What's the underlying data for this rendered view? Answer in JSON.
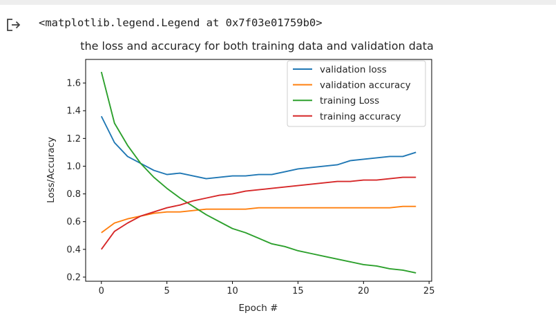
{
  "output": {
    "icon": "output-arrow-icon",
    "repr_text": "<matplotlib.legend.Legend at 0x7f03e01759b0>"
  },
  "chart_data": {
    "type": "line",
    "title": "the loss and accuracy for both training data and validation data",
    "xlabel": "Epoch #",
    "ylabel": "Loss/Accuracy",
    "xlim": [
      -1.2,
      25.2
    ],
    "ylim": [
      0.17,
      1.77
    ],
    "xticks": [
      0,
      5,
      10,
      15,
      20,
      25
    ],
    "yticks": [
      0.2,
      0.4,
      0.6,
      0.8,
      1.0,
      1.2,
      1.4,
      1.6
    ],
    "ytick_labels": [
      "0.2",
      "0.4",
      "0.6",
      "0.8",
      "1.0",
      "1.2",
      "1.4",
      "1.6"
    ],
    "grid": false,
    "legend_position": "upper right",
    "x": [
      0,
      1,
      2,
      3,
      4,
      5,
      6,
      7,
      8,
      9,
      10,
      11,
      12,
      13,
      14,
      15,
      16,
      17,
      18,
      19,
      20,
      21,
      22,
      23,
      24
    ],
    "series": [
      {
        "name": "validation loss",
        "color": "#1f77b4",
        "values": [
          1.36,
          1.17,
          1.07,
          1.02,
          0.97,
          0.94,
          0.95,
          0.93,
          0.91,
          0.92,
          0.93,
          0.93,
          0.94,
          0.94,
          0.96,
          0.98,
          0.99,
          1.0,
          1.01,
          1.04,
          1.05,
          1.06,
          1.07,
          1.07,
          1.1
        ]
      },
      {
        "name": "validation accuracy",
        "color": "#ff7f0e",
        "values": [
          0.52,
          0.59,
          0.62,
          0.64,
          0.66,
          0.67,
          0.67,
          0.68,
          0.69,
          0.69,
          0.69,
          0.69,
          0.7,
          0.7,
          0.7,
          0.7,
          0.7,
          0.7,
          0.7,
          0.7,
          0.7,
          0.7,
          0.7,
          0.71,
          0.71
        ]
      },
      {
        "name": "training Loss",
        "color": "#2ca02c",
        "values": [
          1.68,
          1.31,
          1.15,
          1.02,
          0.92,
          0.84,
          0.77,
          0.71,
          0.65,
          0.6,
          0.55,
          0.52,
          0.48,
          0.44,
          0.42,
          0.39,
          0.37,
          0.35,
          0.33,
          0.31,
          0.29,
          0.28,
          0.26,
          0.25,
          0.23
        ]
      },
      {
        "name": "training accuracy",
        "color": "#d62728",
        "values": [
          0.4,
          0.53,
          0.59,
          0.64,
          0.67,
          0.7,
          0.72,
          0.75,
          0.77,
          0.79,
          0.8,
          0.82,
          0.83,
          0.84,
          0.85,
          0.86,
          0.87,
          0.88,
          0.89,
          0.89,
          0.9,
          0.9,
          0.91,
          0.92,
          0.92
        ]
      }
    ]
  }
}
